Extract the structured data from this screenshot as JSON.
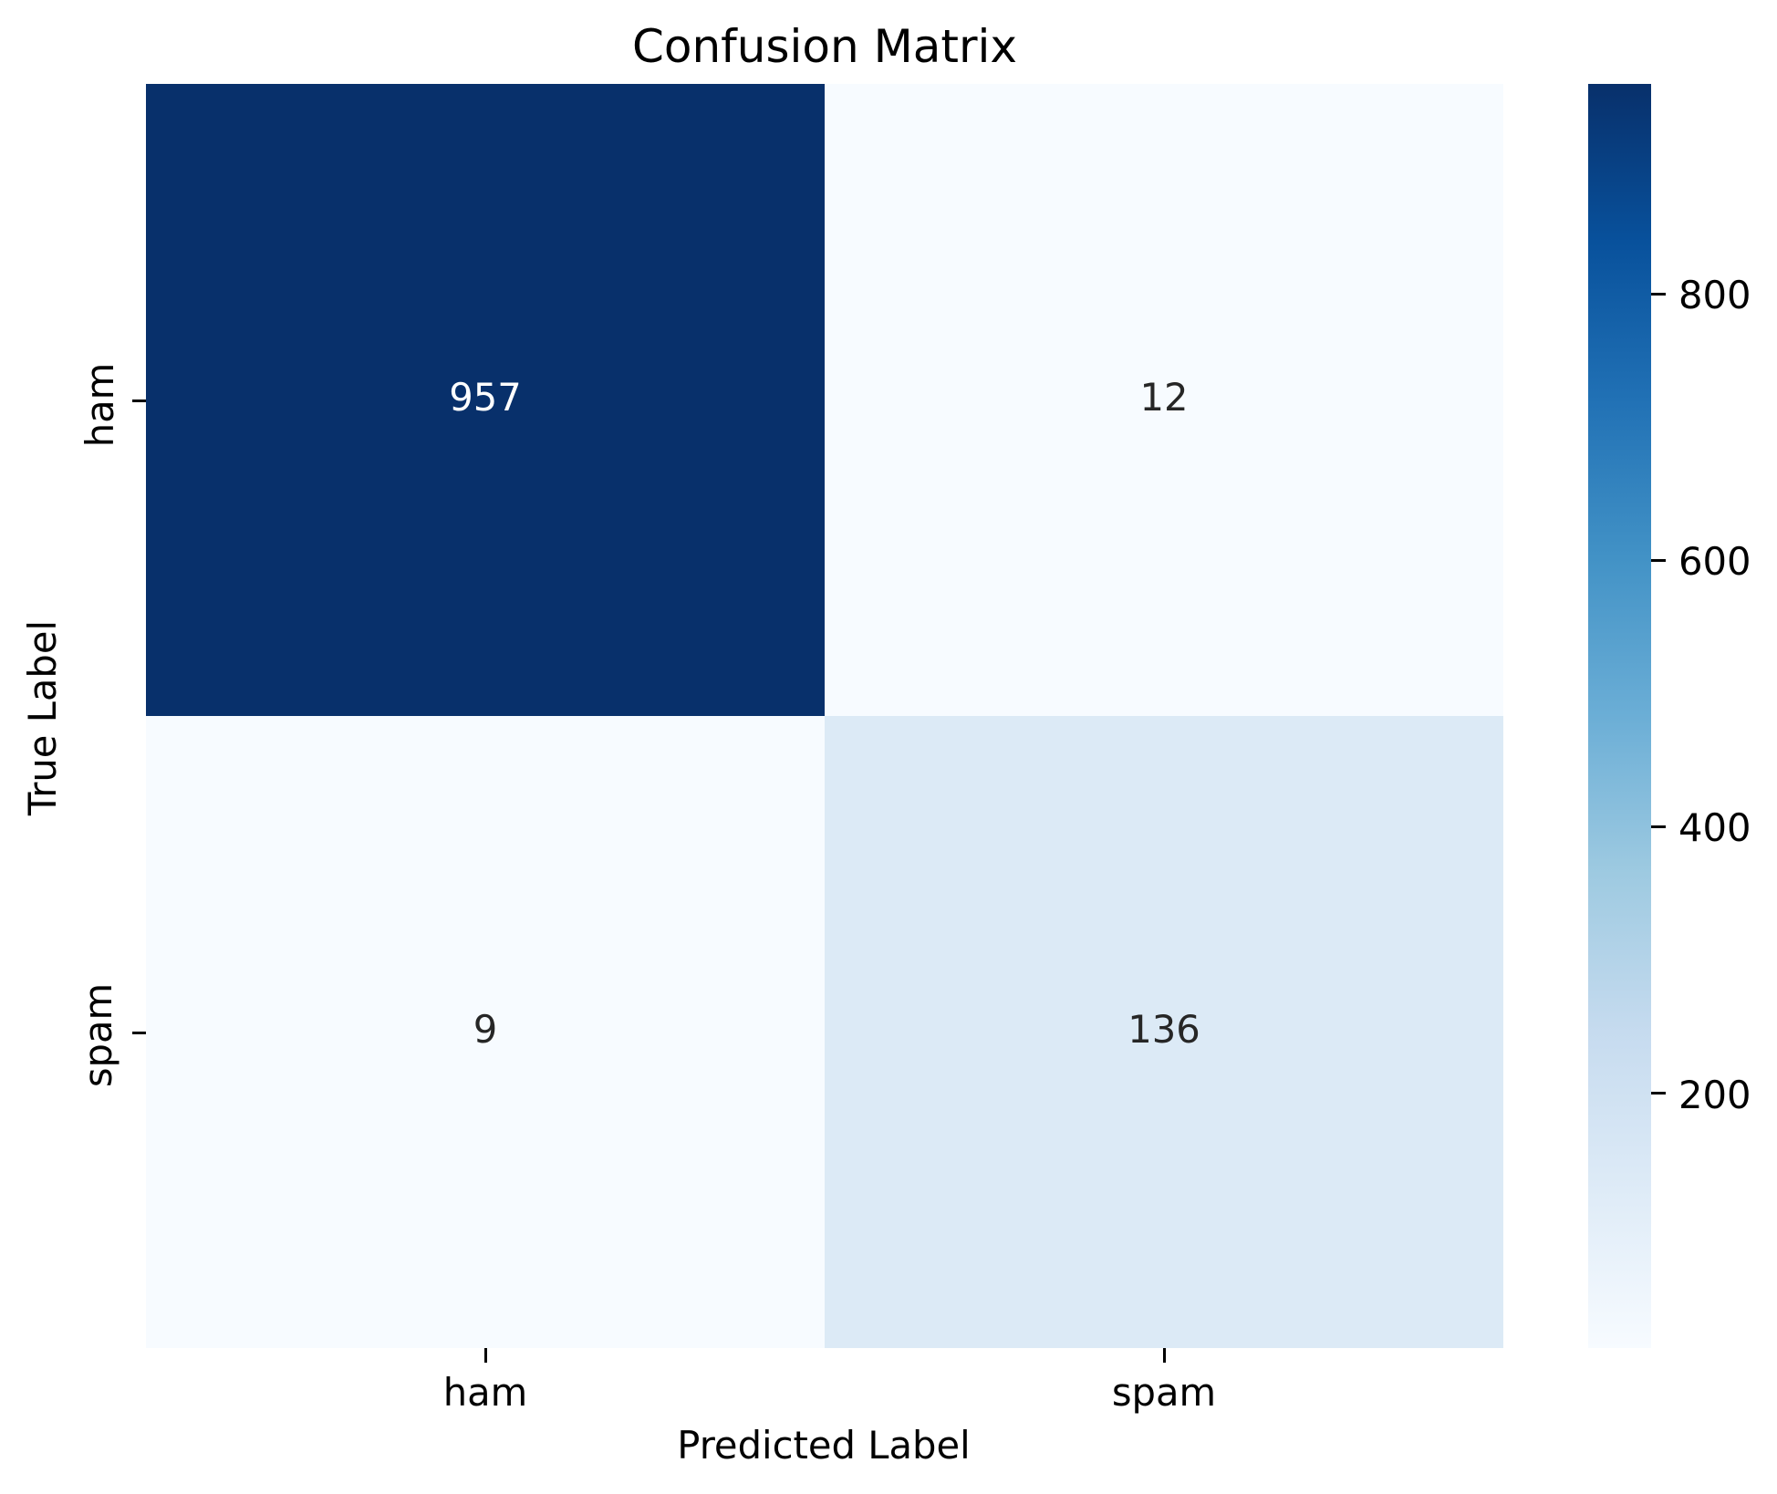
{
  "chart_data": {
    "type": "heatmap",
    "title": "Confusion Matrix",
    "xlabel": "Predicted Label",
    "ylabel": "True Label",
    "x_categories": [
      "ham",
      "spam"
    ],
    "y_categories": [
      "ham",
      "spam"
    ],
    "values": [
      [
        957,
        12
      ],
      [
        9,
        136
      ]
    ],
    "colormap": "Blues",
    "vmin": 9,
    "vmax": 957,
    "grid": false,
    "background_color": "#ffffff",
    "text_color": "#000000",
    "cell_colors": [
      [
        "#08306b",
        "#f7fbff"
      ],
      [
        "#f7fbff",
        "#dceaf6"
      ]
    ],
    "annot_colors": [
      [
        "#ffffff",
        "#262626"
      ],
      [
        "#262626",
        "#262626"
      ]
    ],
    "colorbar": {
      "position": "right",
      "ticks": [
        {
          "value": 800,
          "label": "800"
        },
        {
          "value": 600,
          "label": "600"
        },
        {
          "value": 400,
          "label": "400"
        },
        {
          "value": 200,
          "label": "200"
        }
      ],
      "gradient_stops": [
        {
          "pos": 0,
          "color": "#f7fbff"
        },
        {
          "pos": 12.5,
          "color": "#deebf7"
        },
        {
          "pos": 25,
          "color": "#c6dbef"
        },
        {
          "pos": 37.5,
          "color": "#9ecae1"
        },
        {
          "pos": 50,
          "color": "#6baed6"
        },
        {
          "pos": 62.5,
          "color": "#4292c6"
        },
        {
          "pos": 75,
          "color": "#2171b5"
        },
        {
          "pos": 87.5,
          "color": "#08519c"
        },
        {
          "pos": 100,
          "color": "#08306b"
        }
      ]
    }
  }
}
